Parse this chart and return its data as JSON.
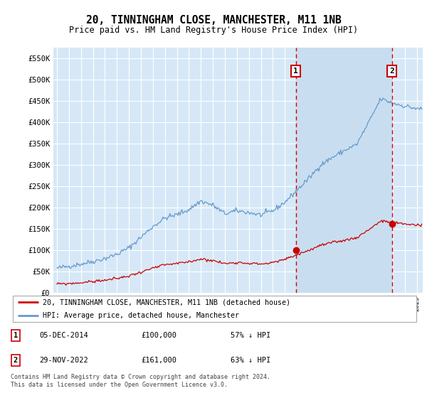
{
  "title": "20, TINNINGHAM CLOSE, MANCHESTER, M11 1NB",
  "subtitle": "Price paid vs. HM Land Registry's House Price Index (HPI)",
  "ylim": [
    0,
    575000
  ],
  "yticks": [
    0,
    50000,
    100000,
    150000,
    200000,
    250000,
    300000,
    350000,
    400000,
    450000,
    500000,
    550000
  ],
  "ytick_labels": [
    "£0",
    "£50K",
    "£100K",
    "£150K",
    "£200K",
    "£250K",
    "£300K",
    "£350K",
    "£400K",
    "£450K",
    "£500K",
    "£550K"
  ],
  "background_color": "#d6e8f7",
  "grid_color": "#ffffff",
  "legend_label_red": "20, TINNINGHAM CLOSE, MANCHESTER, M11 1NB (detached house)",
  "legend_label_blue": "HPI: Average price, detached house, Manchester",
  "marker1_date": "05-DEC-2014",
  "marker1_price": "£100,000",
  "marker1_pct": "57% ↓ HPI",
  "marker2_date": "29-NOV-2022",
  "marker2_price": "£161,000",
  "marker2_pct": "63% ↓ HPI",
  "footnote": "Contains HM Land Registry data © Crown copyright and database right 2024.\nThis data is licensed under the Open Government Licence v3.0.",
  "red_line_color": "#cc0000",
  "blue_line_color": "#6699cc",
  "shade_color": "#c8def0",
  "marker_line_color": "#cc0000",
  "marker1_x": 2014.92,
  "marker2_x": 2022.92,
  "marker1_y": 100000,
  "marker2_y": 161000,
  "xlim_left": 1994.7,
  "xlim_right": 2025.5
}
